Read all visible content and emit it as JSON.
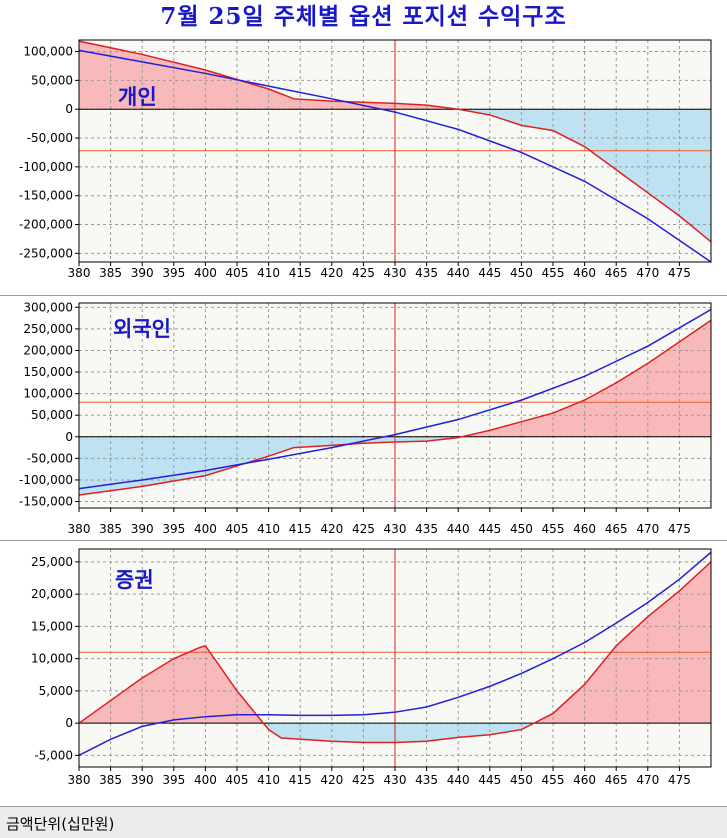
{
  "title": "7월 25일 주체별 옵션 포지션 수익구조",
  "footer": {
    "unit_label": "금액단위(십만원)"
  },
  "colors": {
    "title": "#1818c8",
    "profit_fill": "#f7b9b9",
    "loss_fill": "#bfe2f2",
    "red_line": "#e02020",
    "blue_line": "#2020d8",
    "ref_line": "#f05a28",
    "label": "#1818c8",
    "bg": "#f8f8f4"
  },
  "chart_data": [
    {
      "type": "line",
      "label": "개인",
      "x_ticks": [
        380,
        385,
        390,
        395,
        400,
        405,
        410,
        415,
        420,
        425,
        430,
        435,
        440,
        445,
        450,
        455,
        460,
        465,
        470,
        475
      ],
      "xlim": [
        380,
        480
      ],
      "ylim": [
        -265000,
        120000
      ],
      "y_ticks": [
        100000,
        50000,
        0,
        -50000,
        -100000,
        -150000,
        -200000,
        -250000
      ],
      "y_tick_labels": [
        "100,000",
        "50,000",
        "0",
        "-50,000",
        "-100,000",
        "-150,000",
        "-200,000",
        "-250,000"
      ],
      "vline": 430,
      "hline": -72000,
      "series": [
        {
          "name": "red",
          "x": [
            380,
            390,
            400,
            410,
            414,
            420,
            425,
            430,
            435,
            440,
            445,
            450,
            455,
            460,
            465,
            470,
            475,
            480
          ],
          "y": [
            118000,
            95000,
            68000,
            35000,
            18000,
            14000,
            12000,
            10000,
            7000,
            0,
            -10000,
            -28000,
            -37000,
            -65000,
            -105000,
            -145000,
            -185000,
            -230000
          ]
        },
        {
          "name": "blue",
          "x": [
            380,
            390,
            400,
            410,
            420,
            430,
            440,
            450,
            460,
            470,
            480
          ],
          "y": [
            102000,
            82000,
            62000,
            40000,
            18000,
            -5000,
            -35000,
            -75000,
            -125000,
            -190000,
            -265000
          ]
        }
      ]
    },
    {
      "type": "line",
      "label": "외국인",
      "x_ticks": [
        380,
        385,
        390,
        395,
        400,
        405,
        410,
        415,
        420,
        425,
        430,
        435,
        440,
        445,
        450,
        455,
        460,
        465,
        470,
        475
      ],
      "xlim": [
        380,
        480
      ],
      "ylim": [
        -165000,
        310000
      ],
      "y_ticks": [
        300000,
        250000,
        200000,
        150000,
        100000,
        50000,
        0,
        -50000,
        -100000,
        -150000
      ],
      "y_tick_labels": [
        "300,000",
        "250,000",
        "200,000",
        "150,000",
        "100,000",
        "50,000",
        "0",
        "-50,000",
        "-100,000",
        "-150,000"
      ],
      "vline": 430,
      "hline": 80000,
      "series": [
        {
          "name": "red",
          "x": [
            380,
            390,
            400,
            410,
            414,
            420,
            425,
            430,
            435,
            440,
            445,
            450,
            455,
            460,
            465,
            470,
            475,
            480
          ],
          "y": [
            -135000,
            -115000,
            -90000,
            -45000,
            -25000,
            -20000,
            -15000,
            -12000,
            -10000,
            -2000,
            15000,
            35000,
            55000,
            85000,
            125000,
            170000,
            220000,
            270000
          ]
        },
        {
          "name": "blue",
          "x": [
            380,
            390,
            400,
            410,
            420,
            430,
            440,
            450,
            460,
            470,
            480
          ],
          "y": [
            -120000,
            -100000,
            -78000,
            -52000,
            -25000,
            5000,
            40000,
            85000,
            140000,
            210000,
            295000
          ]
        }
      ]
    },
    {
      "type": "line",
      "label": "증권",
      "x_ticks": [
        380,
        385,
        390,
        395,
        400,
        405,
        410,
        415,
        420,
        425,
        430,
        435,
        440,
        445,
        450,
        455,
        460,
        465,
        470,
        475
      ],
      "xlim": [
        380,
        480
      ],
      "ylim": [
        -6800,
        27000
      ],
      "y_ticks": [
        25000,
        20000,
        15000,
        10000,
        5000,
        0,
        -5000
      ],
      "y_tick_labels": [
        "25,000",
        "20,000",
        "15,000",
        "10,000",
        "5,000",
        "0",
        "-5,000"
      ],
      "vline": 430,
      "hline": 11000,
      "series": [
        {
          "name": "red",
          "x": [
            380,
            385,
            390,
            395,
            399,
            400,
            405,
            410,
            412,
            420,
            425,
            430,
            435,
            440,
            445,
            450,
            452,
            455,
            460,
            465,
            470,
            475,
            480
          ],
          "y": [
            0,
            3500,
            7000,
            10000,
            11700,
            12000,
            5000,
            -1000,
            -2300,
            -2800,
            -3000,
            -3000,
            -2800,
            -2200,
            -1800,
            -1000,
            0,
            1500,
            6000,
            12000,
            16500,
            20500,
            25000
          ]
        },
        {
          "name": "blue",
          "x": [
            380,
            385,
            390,
            395,
            400,
            405,
            410,
            415,
            420,
            425,
            430,
            435,
            440,
            445,
            450,
            455,
            460,
            465,
            470,
            475,
            480
          ],
          "y": [
            -5000,
            -2500,
            -500,
            500,
            1000,
            1300,
            1300,
            1200,
            1200,
            1300,
            1700,
            2500,
            4000,
            5700,
            7700,
            10000,
            12500,
            15500,
            18700,
            22300,
            26500
          ]
        }
      ]
    }
  ]
}
